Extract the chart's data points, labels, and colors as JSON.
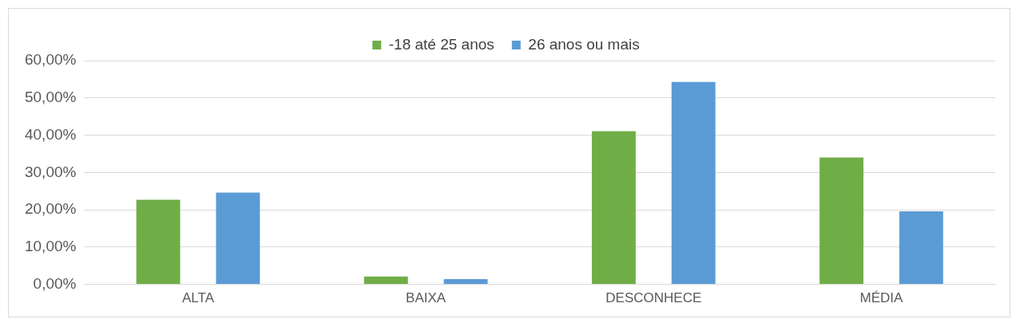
{
  "chart_data": {
    "type": "bar",
    "categories": [
      "ALTA",
      "BAIXA",
      "DESCONHECE",
      "MÉDIA"
    ],
    "series": [
      {
        "name": "-18 até 25 anos",
        "color": "#70ad47",
        "values": [
          22.7,
          2.1,
          41.1,
          34.0
        ]
      },
      {
        "name": "26 anos ou mais",
        "color": "#5b9bd5",
        "values": [
          24.6,
          1.4,
          54.3,
          19.6
        ]
      }
    ],
    "ylim": [
      0,
      60
    ],
    "yticks": [
      {
        "value": 0,
        "label": "0,00%"
      },
      {
        "value": 10,
        "label": "10,00%"
      },
      {
        "value": 20,
        "label": "20,00%"
      },
      {
        "value": 30,
        "label": "30,00%"
      },
      {
        "value": 40,
        "label": "40,00%"
      },
      {
        "value": 50,
        "label": "50,00%"
      },
      {
        "value": 60,
        "label": "60,00%"
      }
    ],
    "grid": "y",
    "legend": "top"
  }
}
